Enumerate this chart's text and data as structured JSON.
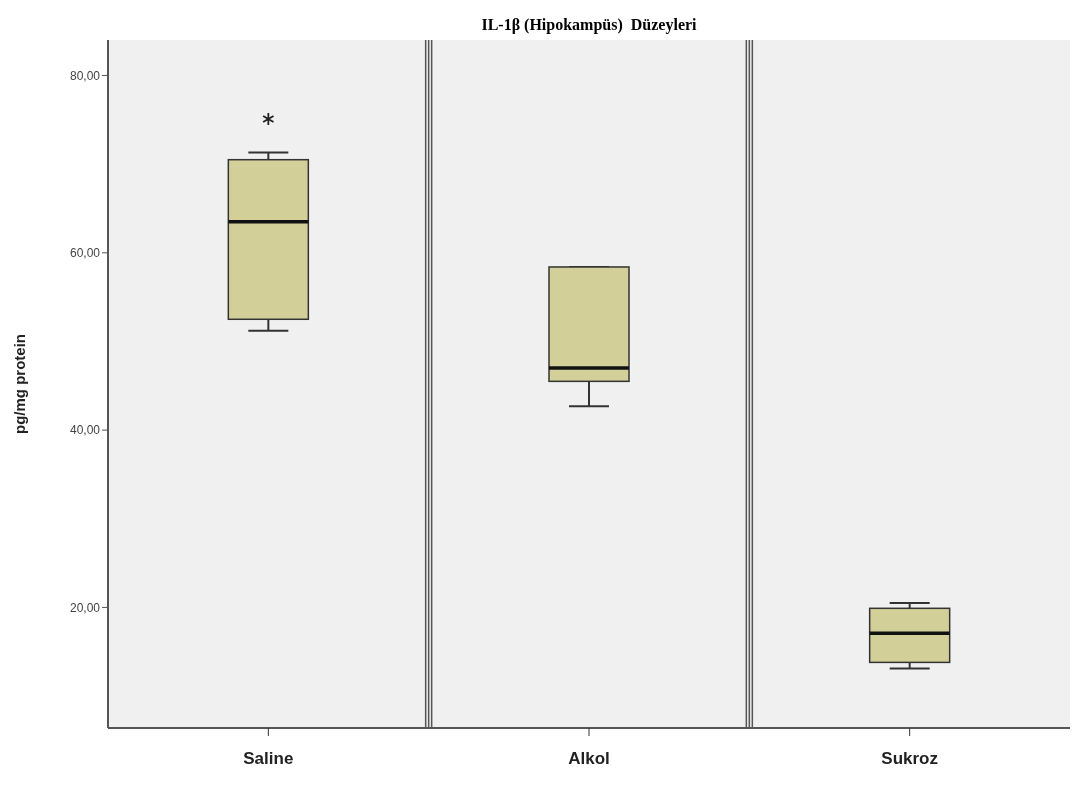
{
  "chart_data": {
    "type": "box",
    "title": "IL-1β (Hipokampüs)  Düzeyleri",
    "ylabel": "pg/mg protein",
    "categories": [
      "Saline",
      "Alkol",
      "Sukroz"
    ],
    "color": "#d3cf98",
    "boxes": [
      {
        "low": 51.2,
        "q1": 52.5,
        "median": 63.5,
        "q3": 70.5,
        "high": 71.3,
        "outliers": [
          75.1
        ]
      },
      {
        "low": 42.7,
        "q1": 45.5,
        "median": 47.0,
        "q3": 58.4,
        "high": 58.4
      },
      {
        "low": 13.1,
        "q1": 13.8,
        "median": 17.1,
        "q3": 19.9,
        "high": 20.5
      }
    ],
    "ylim": [
      6.4,
      84
    ],
    "yticks": [
      {
        "value": 20,
        "label": "20,00"
      },
      {
        "value": 40,
        "label": "40,00"
      },
      {
        "value": 60,
        "label": "60,00"
      },
      {
        "value": 80,
        "label": "80,00"
      }
    ]
  }
}
